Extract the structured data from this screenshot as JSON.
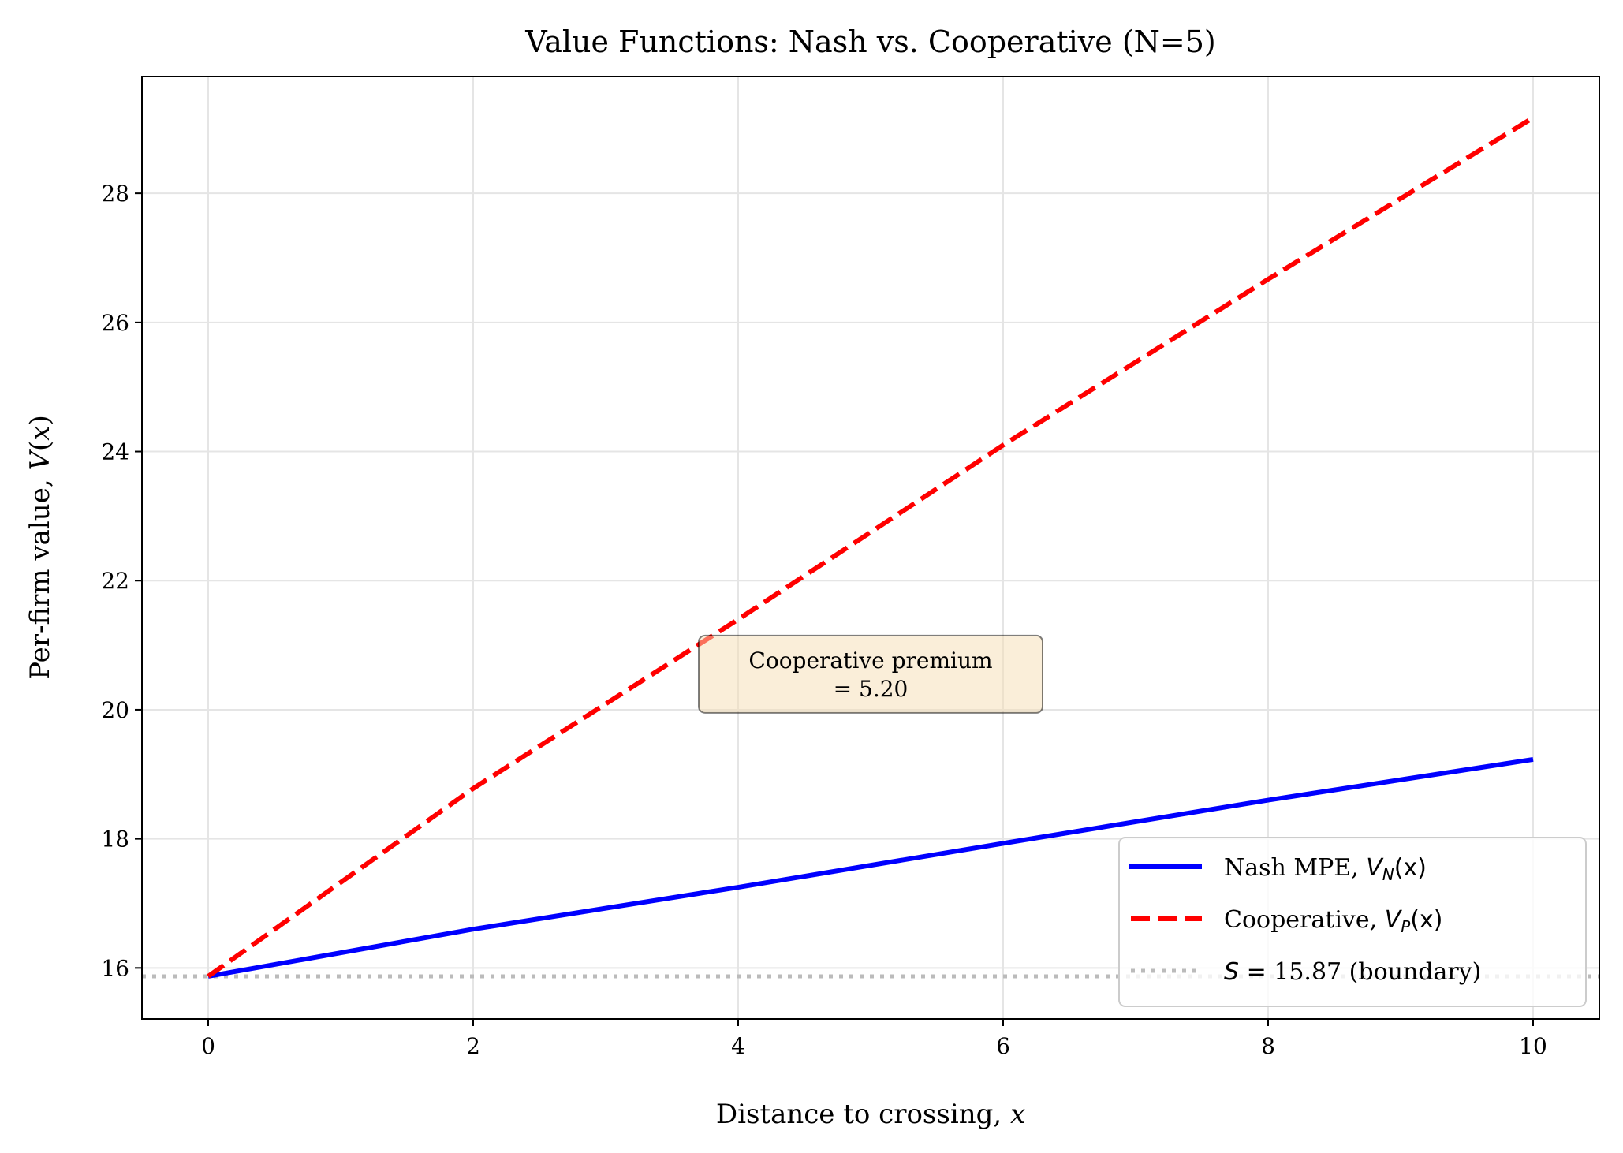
{
  "chart_data": {
    "type": "line",
    "title": "Value Functions: Nash vs. Cooperative (N=5)",
    "xlabel": "Distance to crossing, x",
    "ylabel": "Per-firm value, V(x)",
    "xlim": [
      -0.5,
      10.5
    ],
    "ylim": [
      15.21,
      29.81
    ],
    "xticks": [
      0,
      2,
      4,
      6,
      8,
      10
    ],
    "yticks": [
      16,
      18,
      20,
      22,
      24,
      26,
      28
    ],
    "grid": true,
    "legend_position": "lower-right",
    "series": [
      {
        "name": "Nash MPE, V_N(x)",
        "color": "#0000ff",
        "style": "solid",
        "x": [
          0,
          2,
          4,
          6,
          8,
          10
        ],
        "y": [
          15.87,
          16.6,
          17.25,
          17.93,
          18.6,
          19.23
        ]
      },
      {
        "name": "Cooperative, V_P(x)",
        "color": "#ff0000",
        "style": "dashed",
        "x": [
          0,
          2,
          4,
          6,
          8,
          10
        ],
        "y": [
          15.87,
          18.78,
          21.4,
          24.1,
          26.67,
          29.17
        ]
      }
    ],
    "hlines": [
      {
        "name": "S = 15.87 (boundary)",
        "y": 15.87,
        "color": "#bbbbbb",
        "style": "dotted"
      }
    ],
    "annotations": [
      {
        "text_line1": "Cooperative premium",
        "text_line2": "= 5.20",
        "x": 5.0,
        "y": 20.55,
        "box_color": "#f5deb3"
      }
    ],
    "legend": {
      "nash_text": "Nash MPE, ",
      "nash_var": "V",
      "nash_sub": "N",
      "coop_text": "Cooperative, ",
      "coop_var": "V",
      "coop_sub": "P",
      "arg": "(x)",
      "s_var": "S",
      "s_text": " = 15.87 (boundary)"
    }
  }
}
